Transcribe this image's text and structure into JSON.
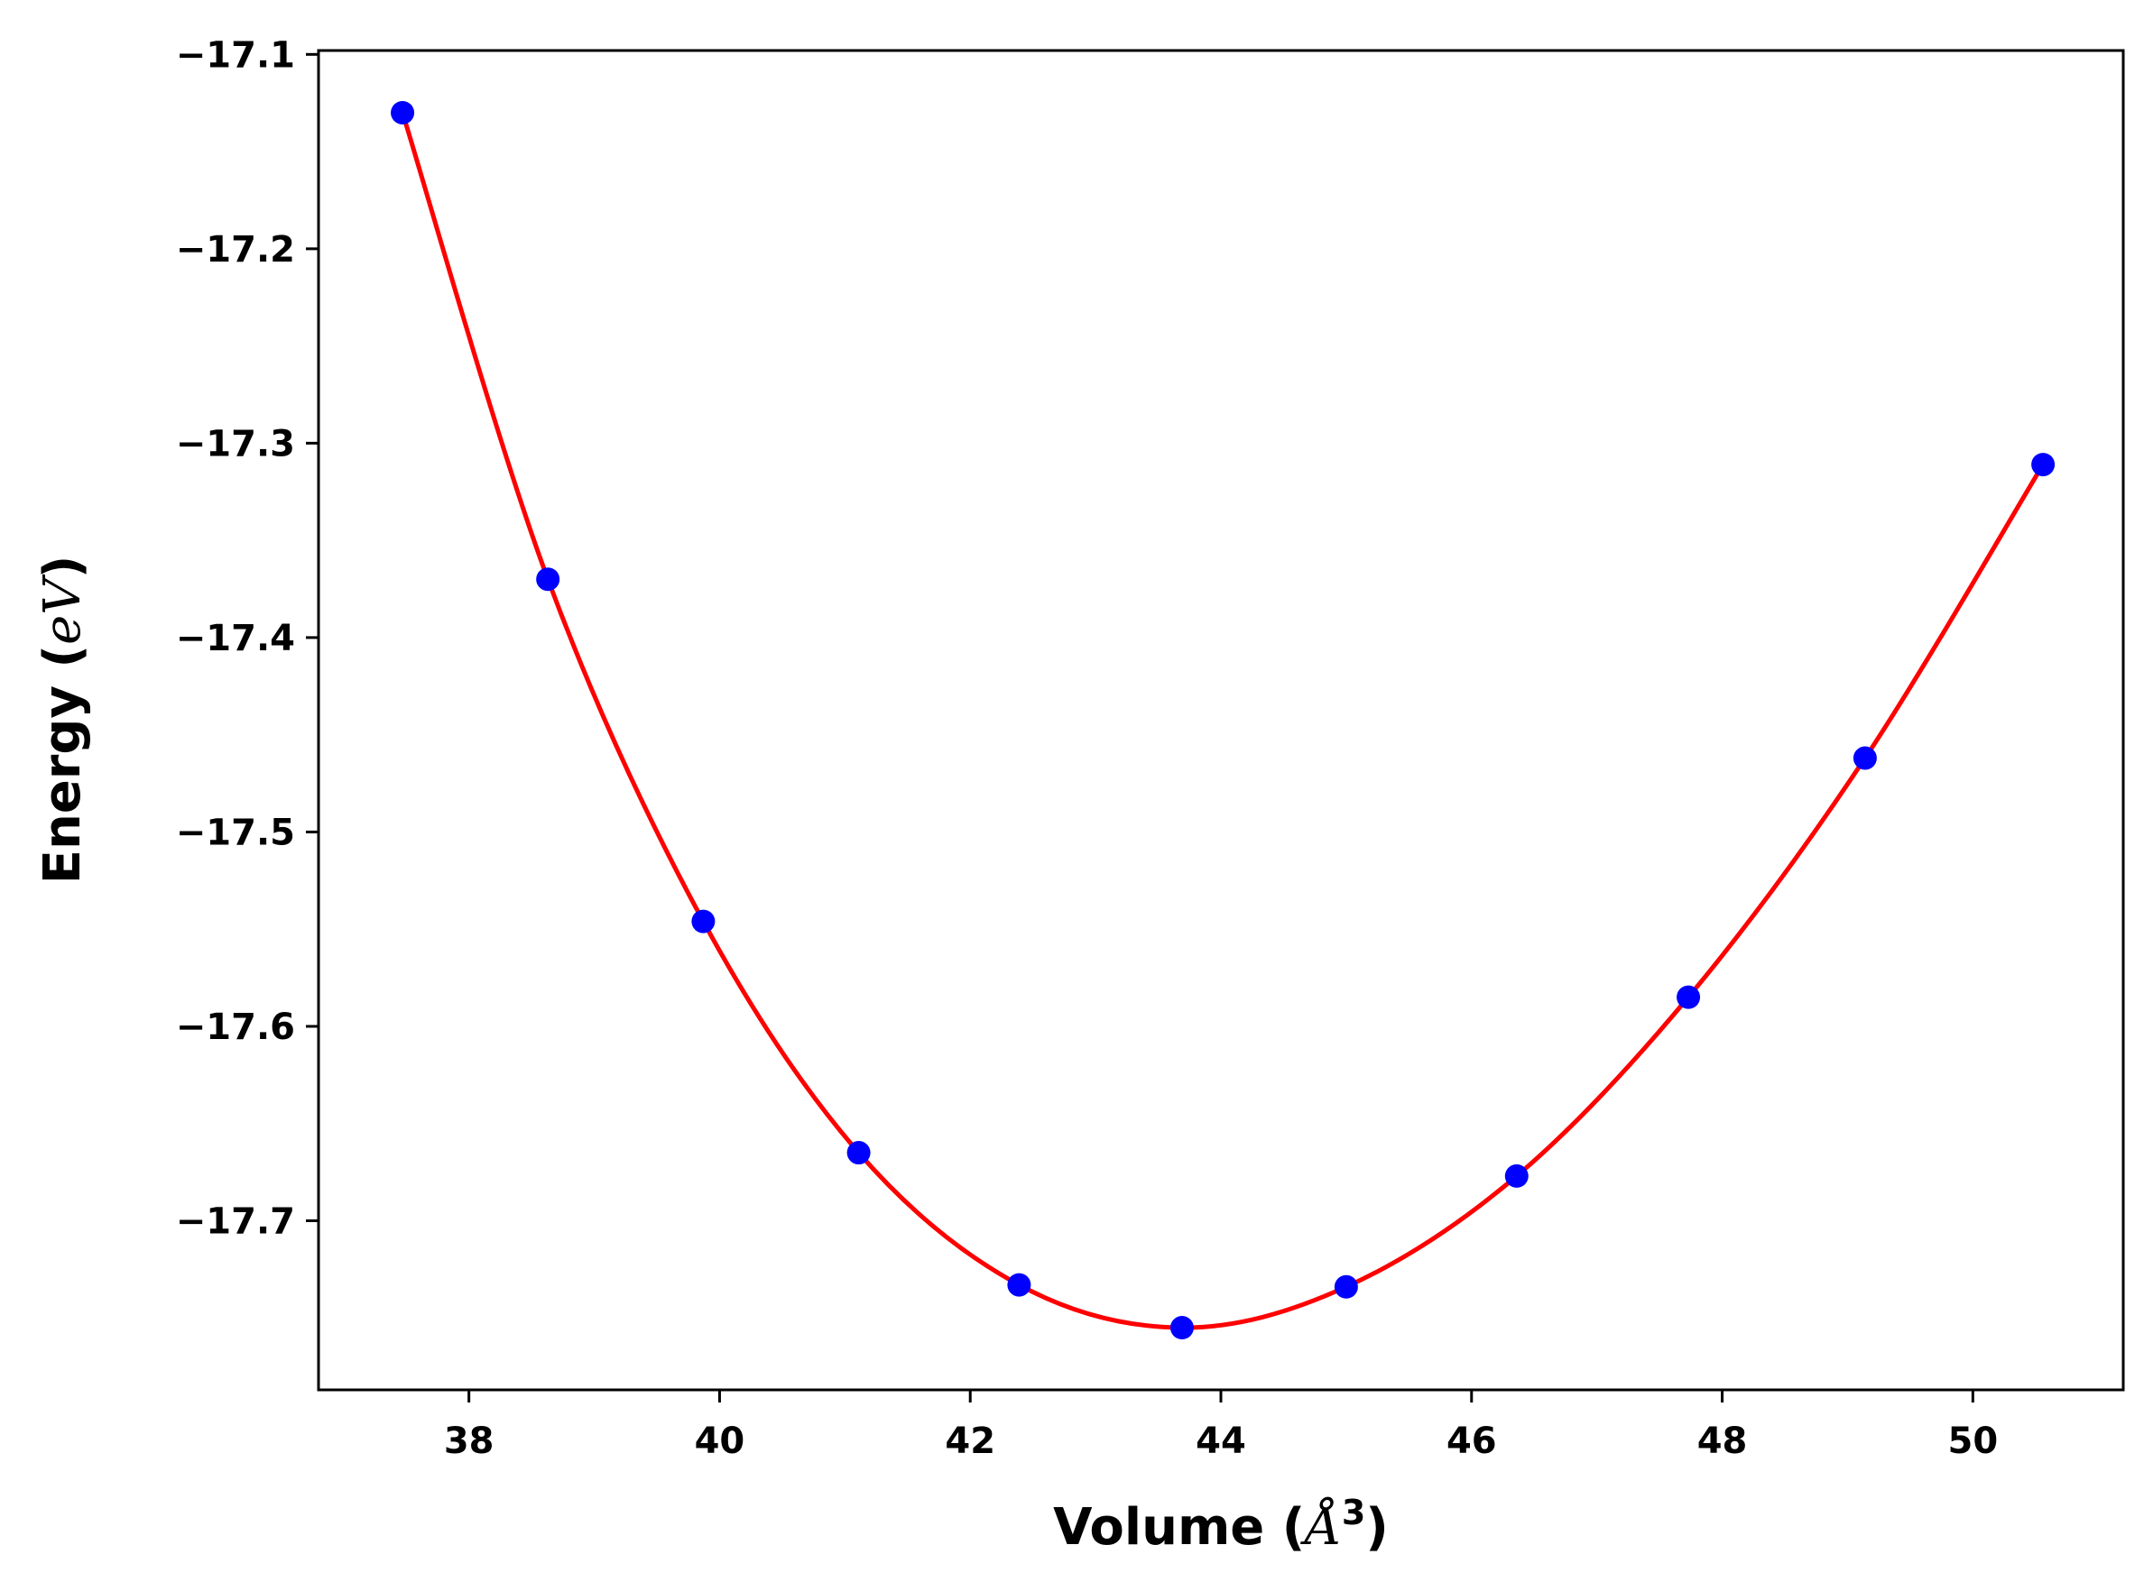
{
  "chart_data": {
    "type": "scatter",
    "title": "",
    "xlabel": {
      "prefix": "Volume (",
      "math": "Å",
      "sup": "3",
      "suffix": ")"
    },
    "ylabel": {
      "prefix": "Energy (",
      "math": "eV",
      "suffix": ")"
    },
    "xlim": [
      36.8,
      51.2
    ],
    "ylim": [
      -17.787,
      -17.098
    ],
    "xticks": [
      38,
      40,
      42,
      44,
      46,
      48,
      50
    ],
    "xtick_labels": [
      "38",
      "40",
      "42",
      "44",
      "46",
      "48",
      "50"
    ],
    "yticks": [
      -17.7,
      -17.6,
      -17.5,
      -17.4,
      -17.3,
      -17.2,
      -17.1
    ],
    "ytick_labels": [
      "−17.7",
      "−17.6",
      "−17.5",
      "−17.4",
      "−17.3",
      "−17.2",
      "−17.1"
    ],
    "grid": false,
    "legend": "none",
    "series": [
      {
        "kind": "points",
        "color": "#0000ff",
        "x": [
          37.47,
          38.63,
          39.87,
          41.11,
          42.39,
          43.69,
          45.0,
          46.36,
          47.73,
          49.14,
          50.56
        ],
        "y": [
          -17.13,
          -17.37,
          -17.546,
          -17.665,
          -17.733,
          -17.755,
          -17.734,
          -17.677,
          -17.585,
          -17.462,
          -17.311
        ]
      },
      {
        "kind": "fit-curve",
        "color": "#ff0000",
        "x": [
          37.47,
          38.63,
          39.87,
          41.11,
          42.39,
          43.69,
          45.0,
          46.36,
          47.73,
          49.14,
          50.56
        ],
        "y": [
          -17.13,
          -17.37,
          -17.546,
          -17.665,
          -17.733,
          -17.755,
          -17.734,
          -17.677,
          -17.585,
          -17.462,
          -17.311
        ]
      }
    ]
  }
}
